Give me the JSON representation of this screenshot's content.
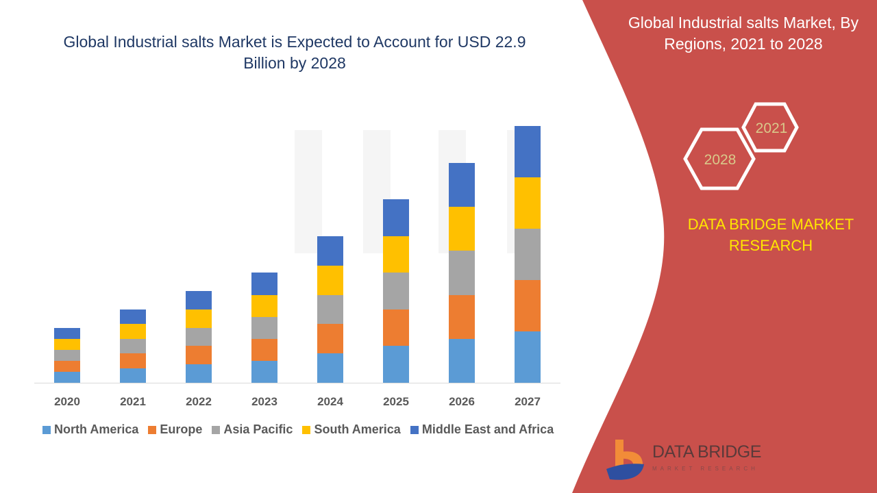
{
  "title": "Global Industrial salts Market is Expected to Account for USD 22.9 Billion by 2028",
  "right_panel": {
    "title": "Global Industrial salts Market, By Regions, 2021 to 2028",
    "hex_years": [
      "2021",
      "2028"
    ],
    "brand": "DATA BRIDGE MARKET RESEARCH",
    "logo_text": "DATA BRIDGE",
    "logo_subtext": "MARKET RESEARCH"
  },
  "colors": {
    "panel": "#C9504B",
    "title": "#1F3864",
    "brand": "#FFE600"
  },
  "chart_data": {
    "type": "bar",
    "stacked": true,
    "title": "",
    "xlabel": "",
    "ylabel": "",
    "y_axis_visible": false,
    "grid": false,
    "legend_position": "bottom",
    "ylim": [
      0,
      380
    ],
    "categories": [
      "2020",
      "2021",
      "2022",
      "2023",
      "2024",
      "2025",
      "2026",
      "2027"
    ],
    "series": [
      {
        "name": "North America",
        "color": "#5B9BD5",
        "values": [
          16,
          21,
          27,
          32,
          43,
          54,
          64,
          75
        ]
      },
      {
        "name": "Europe",
        "color": "#ED7D31",
        "values": [
          16,
          22,
          27,
          32,
          43,
          53,
          64,
          75
        ]
      },
      {
        "name": "Asia Pacific",
        "color": "#A5A5A5",
        "values": [
          16,
          21,
          26,
          32,
          42,
          54,
          65,
          75
        ]
      },
      {
        "name": "South America",
        "color": "#FFC000",
        "values": [
          16,
          22,
          27,
          32,
          43,
          53,
          64,
          75
        ]
      },
      {
        "name": "Middle East and Africa",
        "color": "#4472C4",
        "values": [
          16,
          21,
          27,
          33,
          43,
          54,
          64,
          75
        ]
      }
    ]
  }
}
